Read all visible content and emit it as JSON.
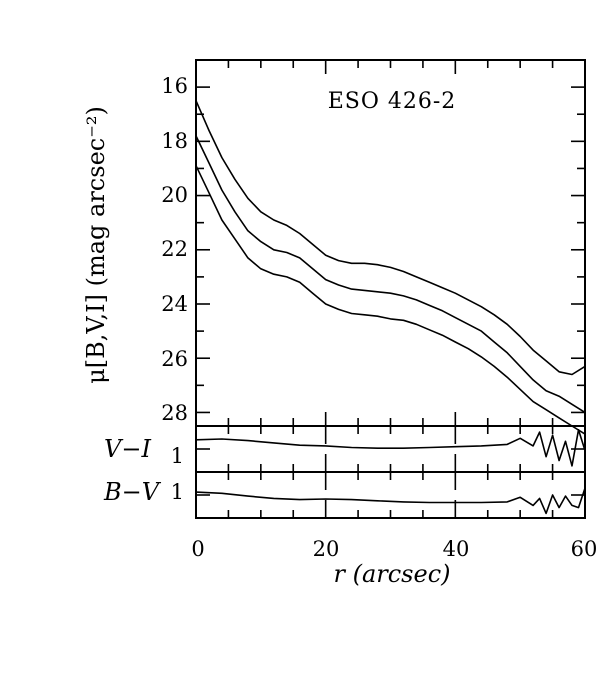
{
  "chart_data": [
    {
      "type": "line",
      "annotation": "ESO 426-2",
      "ylabel": "μ[B,V,I] (mag arcsec⁻²)",
      "xlim": [
        0,
        60
      ],
      "ylim": [
        28.5,
        15
      ],
      "y_inverted": true,
      "y_ticks": [
        "16",
        "18",
        "20",
        "22",
        "24",
        "26",
        "28"
      ],
      "series": [
        {
          "x": [
            0,
            2,
            4,
            6,
            8,
            10,
            12,
            14,
            16,
            18,
            20,
            22,
            24,
            26,
            28,
            30,
            32,
            34,
            36,
            38,
            40,
            42,
            44,
            46,
            48,
            50,
            52,
            54,
            56,
            58,
            60
          ],
          "values": [
            16.5,
            17.6,
            18.6,
            19.4,
            20.1,
            20.6,
            20.9,
            21.1,
            21.4,
            21.8,
            22.2,
            22.4,
            22.5,
            22.5,
            22.55,
            22.65,
            22.8,
            23.0,
            23.2,
            23.4,
            23.6,
            23.85,
            24.1,
            24.4,
            24.75,
            25.2,
            25.7,
            26.1,
            26.5,
            26.6,
            26.3
          ]
        },
        {
          "x": [
            0,
            2,
            4,
            6,
            8,
            10,
            12,
            14,
            16,
            18,
            20,
            22,
            24,
            26,
            28,
            30,
            32,
            34,
            36,
            38,
            40,
            42,
            44,
            46,
            48,
            50,
            52,
            54,
            56,
            58,
            60
          ],
          "values": [
            17.8,
            18.8,
            19.8,
            20.6,
            21.3,
            21.7,
            22.0,
            22.1,
            22.3,
            22.7,
            23.1,
            23.3,
            23.45,
            23.5,
            23.55,
            23.6,
            23.7,
            23.85,
            24.05,
            24.25,
            24.5,
            24.75,
            25.0,
            25.4,
            25.8,
            26.3,
            26.8,
            27.2,
            27.4,
            27.7,
            28.0
          ]
        },
        {
          "x": [
            0,
            2,
            4,
            6,
            8,
            10,
            12,
            14,
            16,
            18,
            20,
            22,
            24,
            26,
            28,
            30,
            32,
            34,
            36,
            38,
            40,
            42,
            44,
            46,
            48,
            50,
            52,
            54,
            56,
            58,
            60
          ],
          "values": [
            18.9,
            19.9,
            20.9,
            21.6,
            22.3,
            22.7,
            22.9,
            23.0,
            23.2,
            23.6,
            24.0,
            24.2,
            24.35,
            24.4,
            24.45,
            24.55,
            24.6,
            24.75,
            24.95,
            25.15,
            25.4,
            25.65,
            25.95,
            26.3,
            26.7,
            27.15,
            27.6,
            27.9,
            28.2,
            28.5,
            28.8
          ]
        }
      ]
    },
    {
      "type": "line",
      "ylabel": "V−I",
      "xlim": [
        0,
        60
      ],
      "ylim": [
        1.3,
        0.7
      ],
      "y_ticks": [
        "1"
      ],
      "series": [
        {
          "x": [
            0,
            4,
            8,
            12,
            16,
            20,
            24,
            28,
            32,
            36,
            40,
            44,
            48,
            50,
            52,
            53,
            54,
            55,
            56,
            57,
            58,
            59,
            60
          ],
          "values": [
            0.88,
            0.87,
            0.89,
            0.92,
            0.95,
            0.96,
            0.98,
            0.99,
            0.99,
            0.98,
            0.97,
            0.96,
            0.94,
            0.86,
            0.96,
            0.78,
            1.1,
            0.82,
            1.15,
            0.9,
            1.22,
            0.75,
            1.02
          ]
        }
      ]
    },
    {
      "type": "line",
      "ylabel": "B−V",
      "xlabel": "r (arcsec)",
      "xlim": [
        0,
        60
      ],
      "ylim": [
        1.4,
        0.6
      ],
      "x_ticks": [
        "0",
        "20",
        "40",
        "60"
      ],
      "y_ticks": [
        "1"
      ],
      "series": [
        {
          "x": [
            0,
            4,
            8,
            12,
            16,
            20,
            24,
            28,
            32,
            36,
            40,
            44,
            48,
            50,
            52,
            53,
            54,
            55,
            56,
            57,
            58,
            59,
            60
          ],
          "values": [
            0.95,
            0.97,
            1.02,
            1.06,
            1.08,
            1.07,
            1.08,
            1.1,
            1.12,
            1.13,
            1.13,
            1.13,
            1.12,
            1.04,
            1.18,
            1.06,
            1.32,
            1.0,
            1.22,
            1.02,
            1.18,
            1.22,
            0.88
          ]
        }
      ]
    }
  ]
}
